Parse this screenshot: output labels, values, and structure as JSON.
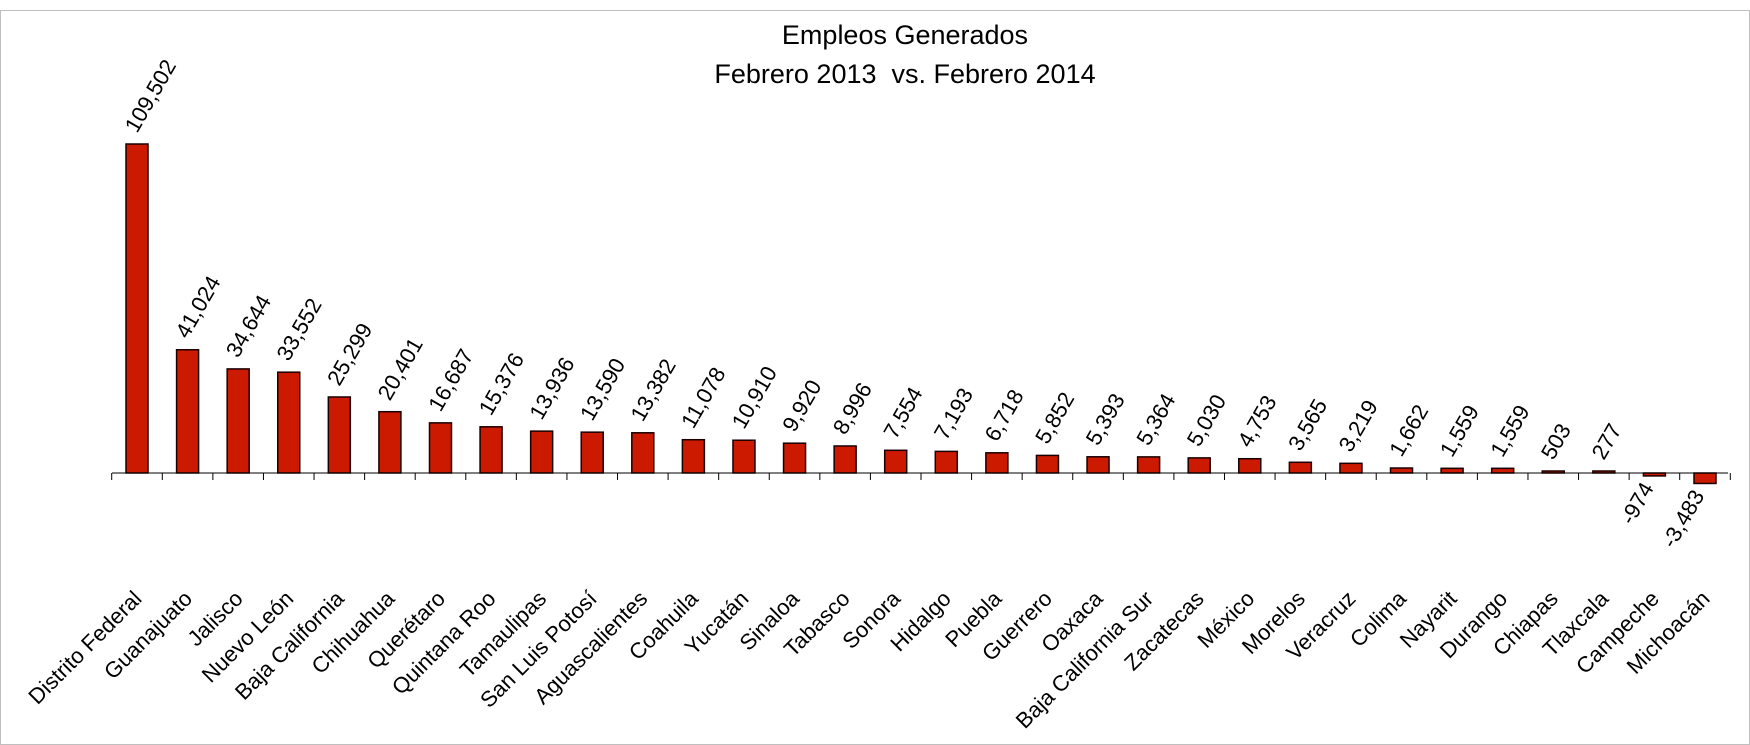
{
  "chart_data": {
    "type": "bar",
    "title": "Empleos Generados",
    "subtitle": "Febrero 2013  vs. Febrero 2014",
    "categories": [
      "Distrito Federal",
      "Guanajuato",
      "Jalisco",
      "Nuevo León",
      "Baja California",
      "Chihuahua",
      "Querétaro",
      "Quintana Roo",
      "Tamaulipas",
      "San Luis Potosí",
      "Aguascalientes",
      "Coahuila",
      "Yucatán",
      "Sinaloa",
      "Tabasco",
      "Sonora",
      "Hidalgo",
      "Puebla",
      "Guerrero",
      "Oaxaca",
      "Baja California Sur",
      "Zacatecas",
      "México",
      "Morelos",
      "Veracruz",
      "Colima",
      "Nayarit",
      "Durango",
      "Chiapas",
      "Tlaxcala",
      "Campeche",
      "Michoacán"
    ],
    "values": [
      109502,
      41024,
      34644,
      33552,
      25299,
      20401,
      16687,
      15376,
      13936,
      13590,
      13382,
      11078,
      10910,
      9920,
      8996,
      7554,
      7193,
      6718,
      5852,
      5393,
      5364,
      5030,
      4753,
      3565,
      3219,
      1662,
      1559,
      1559,
      503,
      277,
      -974,
      -3483
    ],
    "value_labels": [
      "109,502",
      "41,024",
      "34,644",
      "33,552",
      "25,299",
      "20,401",
      "16,687",
      "15,376",
      "13,936",
      "13,590",
      "13,382",
      "11,078",
      "10,910",
      "9,920",
      "8,996",
      "7,554",
      "7,193",
      "6,718",
      "5,852",
      "5,393",
      "5,364",
      "5,030",
      "4,753",
      "3,565",
      "3,219",
      "1,662",
      "1,559",
      "1,559",
      "503",
      "277",
      "-974",
      "-3,483"
    ],
    "xlabel": "",
    "ylabel": "",
    "ylim": [
      -3483,
      109502
    ],
    "grid": false,
    "legend": "none",
    "colors": {
      "bar_fill": "#cc1a00",
      "bar_stroke": "#1a0000",
      "axis": "#000000",
      "frame": "#bfbfbf"
    }
  }
}
